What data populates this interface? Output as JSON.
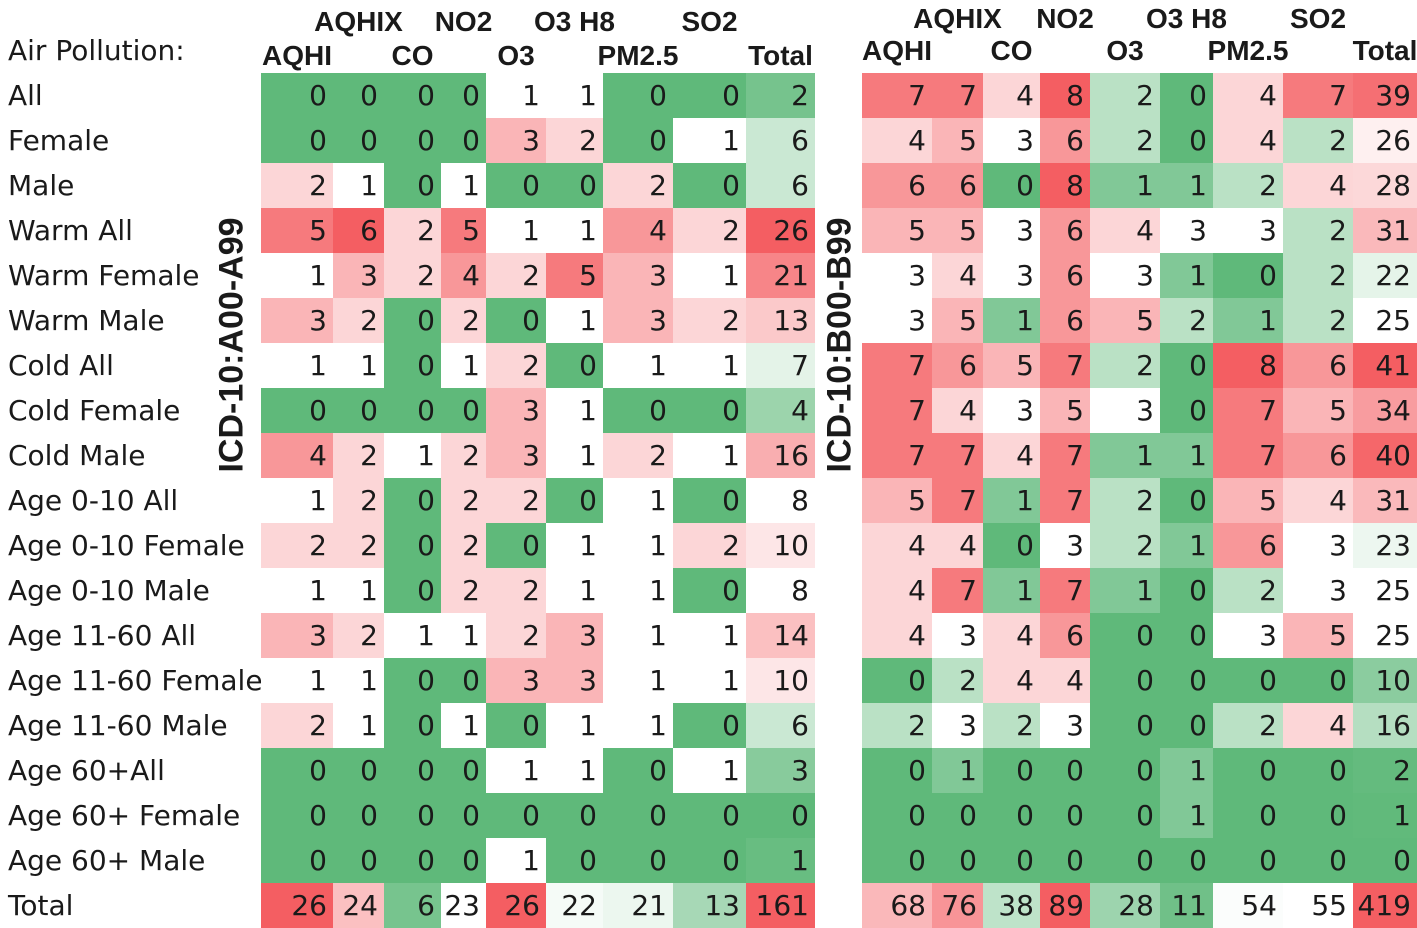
{
  "chart_data": [
    {
      "type": "heatmap",
      "title": "",
      "ylabel": "ICD-10:A00-A99",
      "columns": [
        "AQHI",
        "AQHIX",
        "CO",
        "NO2",
        "O3",
        "O3 H8",
        "PM2.5",
        "SO2",
        "Total"
      ],
      "rows": [
        "All",
        "Female",
        "Male",
        "Warm All",
        "Warm Female",
        "Warm Male",
        "Cold All",
        "Cold Female",
        "Cold Male",
        "Age 0-10 All",
        "Age 0-10 Female",
        "Age 0-10 Male",
        "Age 11-60 All",
        "Age 11-60 Female",
        "Age 11-60 Male",
        "Age 60+All",
        "Age 60+ Female",
        "Age 60+ Male",
        "Total"
      ],
      "values": [
        [
          0,
          0,
          0,
          0,
          1,
          1,
          0,
          0,
          2
        ],
        [
          0,
          0,
          0,
          0,
          3,
          2,
          0,
          1,
          6
        ],
        [
          2,
          1,
          0,
          1,
          0,
          0,
          2,
          0,
          6
        ],
        [
          5,
          6,
          2,
          5,
          1,
          1,
          4,
          2,
          26
        ],
        [
          1,
          3,
          2,
          4,
          2,
          5,
          3,
          1,
          21
        ],
        [
          3,
          2,
          0,
          2,
          0,
          1,
          3,
          2,
          13
        ],
        [
          1,
          1,
          0,
          1,
          2,
          0,
          1,
          1,
          7
        ],
        [
          0,
          0,
          0,
          0,
          3,
          1,
          0,
          0,
          4
        ],
        [
          4,
          2,
          1,
          2,
          3,
          1,
          2,
          1,
          16
        ],
        [
          1,
          2,
          0,
          2,
          2,
          0,
          1,
          0,
          8
        ],
        [
          2,
          2,
          0,
          2,
          0,
          1,
          1,
          2,
          10
        ],
        [
          1,
          1,
          0,
          2,
          2,
          1,
          1,
          0,
          8
        ],
        [
          3,
          2,
          1,
          1,
          2,
          3,
          1,
          1,
          14
        ],
        [
          1,
          1,
          0,
          0,
          3,
          3,
          1,
          1,
          10
        ],
        [
          2,
          1,
          0,
          1,
          0,
          1,
          1,
          0,
          6
        ],
        [
          0,
          0,
          0,
          0,
          1,
          1,
          0,
          1,
          3
        ],
        [
          0,
          0,
          0,
          0,
          0,
          0,
          0,
          0,
          0
        ],
        [
          0,
          0,
          0,
          0,
          1,
          0,
          0,
          0,
          1
        ],
        [
          26,
          24,
          6,
          23,
          26,
          22,
          21,
          13,
          161
        ]
      ]
    },
    {
      "type": "heatmap",
      "title": "",
      "ylabel": "ICD-10:B00-B99",
      "columns": [
        "AQHI",
        "AQHIX",
        "CO",
        "NO2",
        "O3",
        "O3 H8",
        "PM2.5",
        "SO2",
        "Total"
      ],
      "rows": [
        "All",
        "Female",
        "Male",
        "Warm All",
        "Warm Female",
        "Warm Male",
        "Cold All",
        "Cold Female",
        "Cold Male",
        "Age 0-10 All",
        "Age 0-10 Female",
        "Age 0-10 Male",
        "Age 11-60 All",
        "Age 11-60 Female",
        "Age 11-60 Male",
        "Age 60+All",
        "Age 60+ Female",
        "Age 60+ Male",
        "Total"
      ],
      "values": [
        [
          7,
          7,
          4,
          8,
          2,
          0,
          4,
          7,
          39
        ],
        [
          4,
          5,
          3,
          6,
          2,
          0,
          4,
          2,
          26
        ],
        [
          6,
          6,
          0,
          8,
          1,
          1,
          2,
          4,
          28
        ],
        [
          5,
          5,
          3,
          6,
          4,
          3,
          3,
          2,
          31
        ],
        [
          3,
          4,
          3,
          6,
          3,
          1,
          0,
          2,
          22
        ],
        [
          3,
          5,
          1,
          6,
          5,
          2,
          1,
          2,
          25
        ],
        [
          7,
          6,
          5,
          7,
          2,
          0,
          8,
          6,
          41
        ],
        [
          7,
          4,
          3,
          5,
          3,
          0,
          7,
          5,
          34
        ],
        [
          7,
          7,
          4,
          7,
          1,
          1,
          7,
          6,
          40
        ],
        [
          5,
          7,
          1,
          7,
          2,
          0,
          5,
          4,
          31
        ],
        [
          4,
          4,
          0,
          3,
          2,
          1,
          6,
          3,
          23
        ],
        [
          4,
          7,
          1,
          7,
          1,
          0,
          2,
          3,
          25
        ],
        [
          4,
          3,
          4,
          6,
          0,
          0,
          3,
          5,
          25
        ],
        [
          0,
          2,
          4,
          4,
          0,
          0,
          0,
          0,
          10
        ],
        [
          2,
          3,
          2,
          3,
          0,
          0,
          2,
          4,
          16
        ],
        [
          0,
          1,
          0,
          0,
          0,
          1,
          0,
          0,
          2
        ],
        [
          0,
          0,
          0,
          0,
          0,
          1,
          0,
          0,
          1
        ],
        [
          0,
          0,
          0,
          0,
          0,
          0,
          0,
          0,
          0
        ],
        [
          68,
          76,
          38,
          89,
          28,
          11,
          54,
          55,
          419
        ]
      ]
    }
  ],
  "labels": {
    "title": "Air Pollution:",
    "header_top": [
      "AQHIX",
      "NO2",
      "O3 H8",
      "SO2"
    ],
    "header_bottom": [
      "AQHI",
      "CO",
      "O3",
      "PM2.5",
      "Total"
    ]
  },
  "colors": {
    "green": "#5fb97a",
    "white": "#ffffff",
    "red": "#f45e62"
  }
}
